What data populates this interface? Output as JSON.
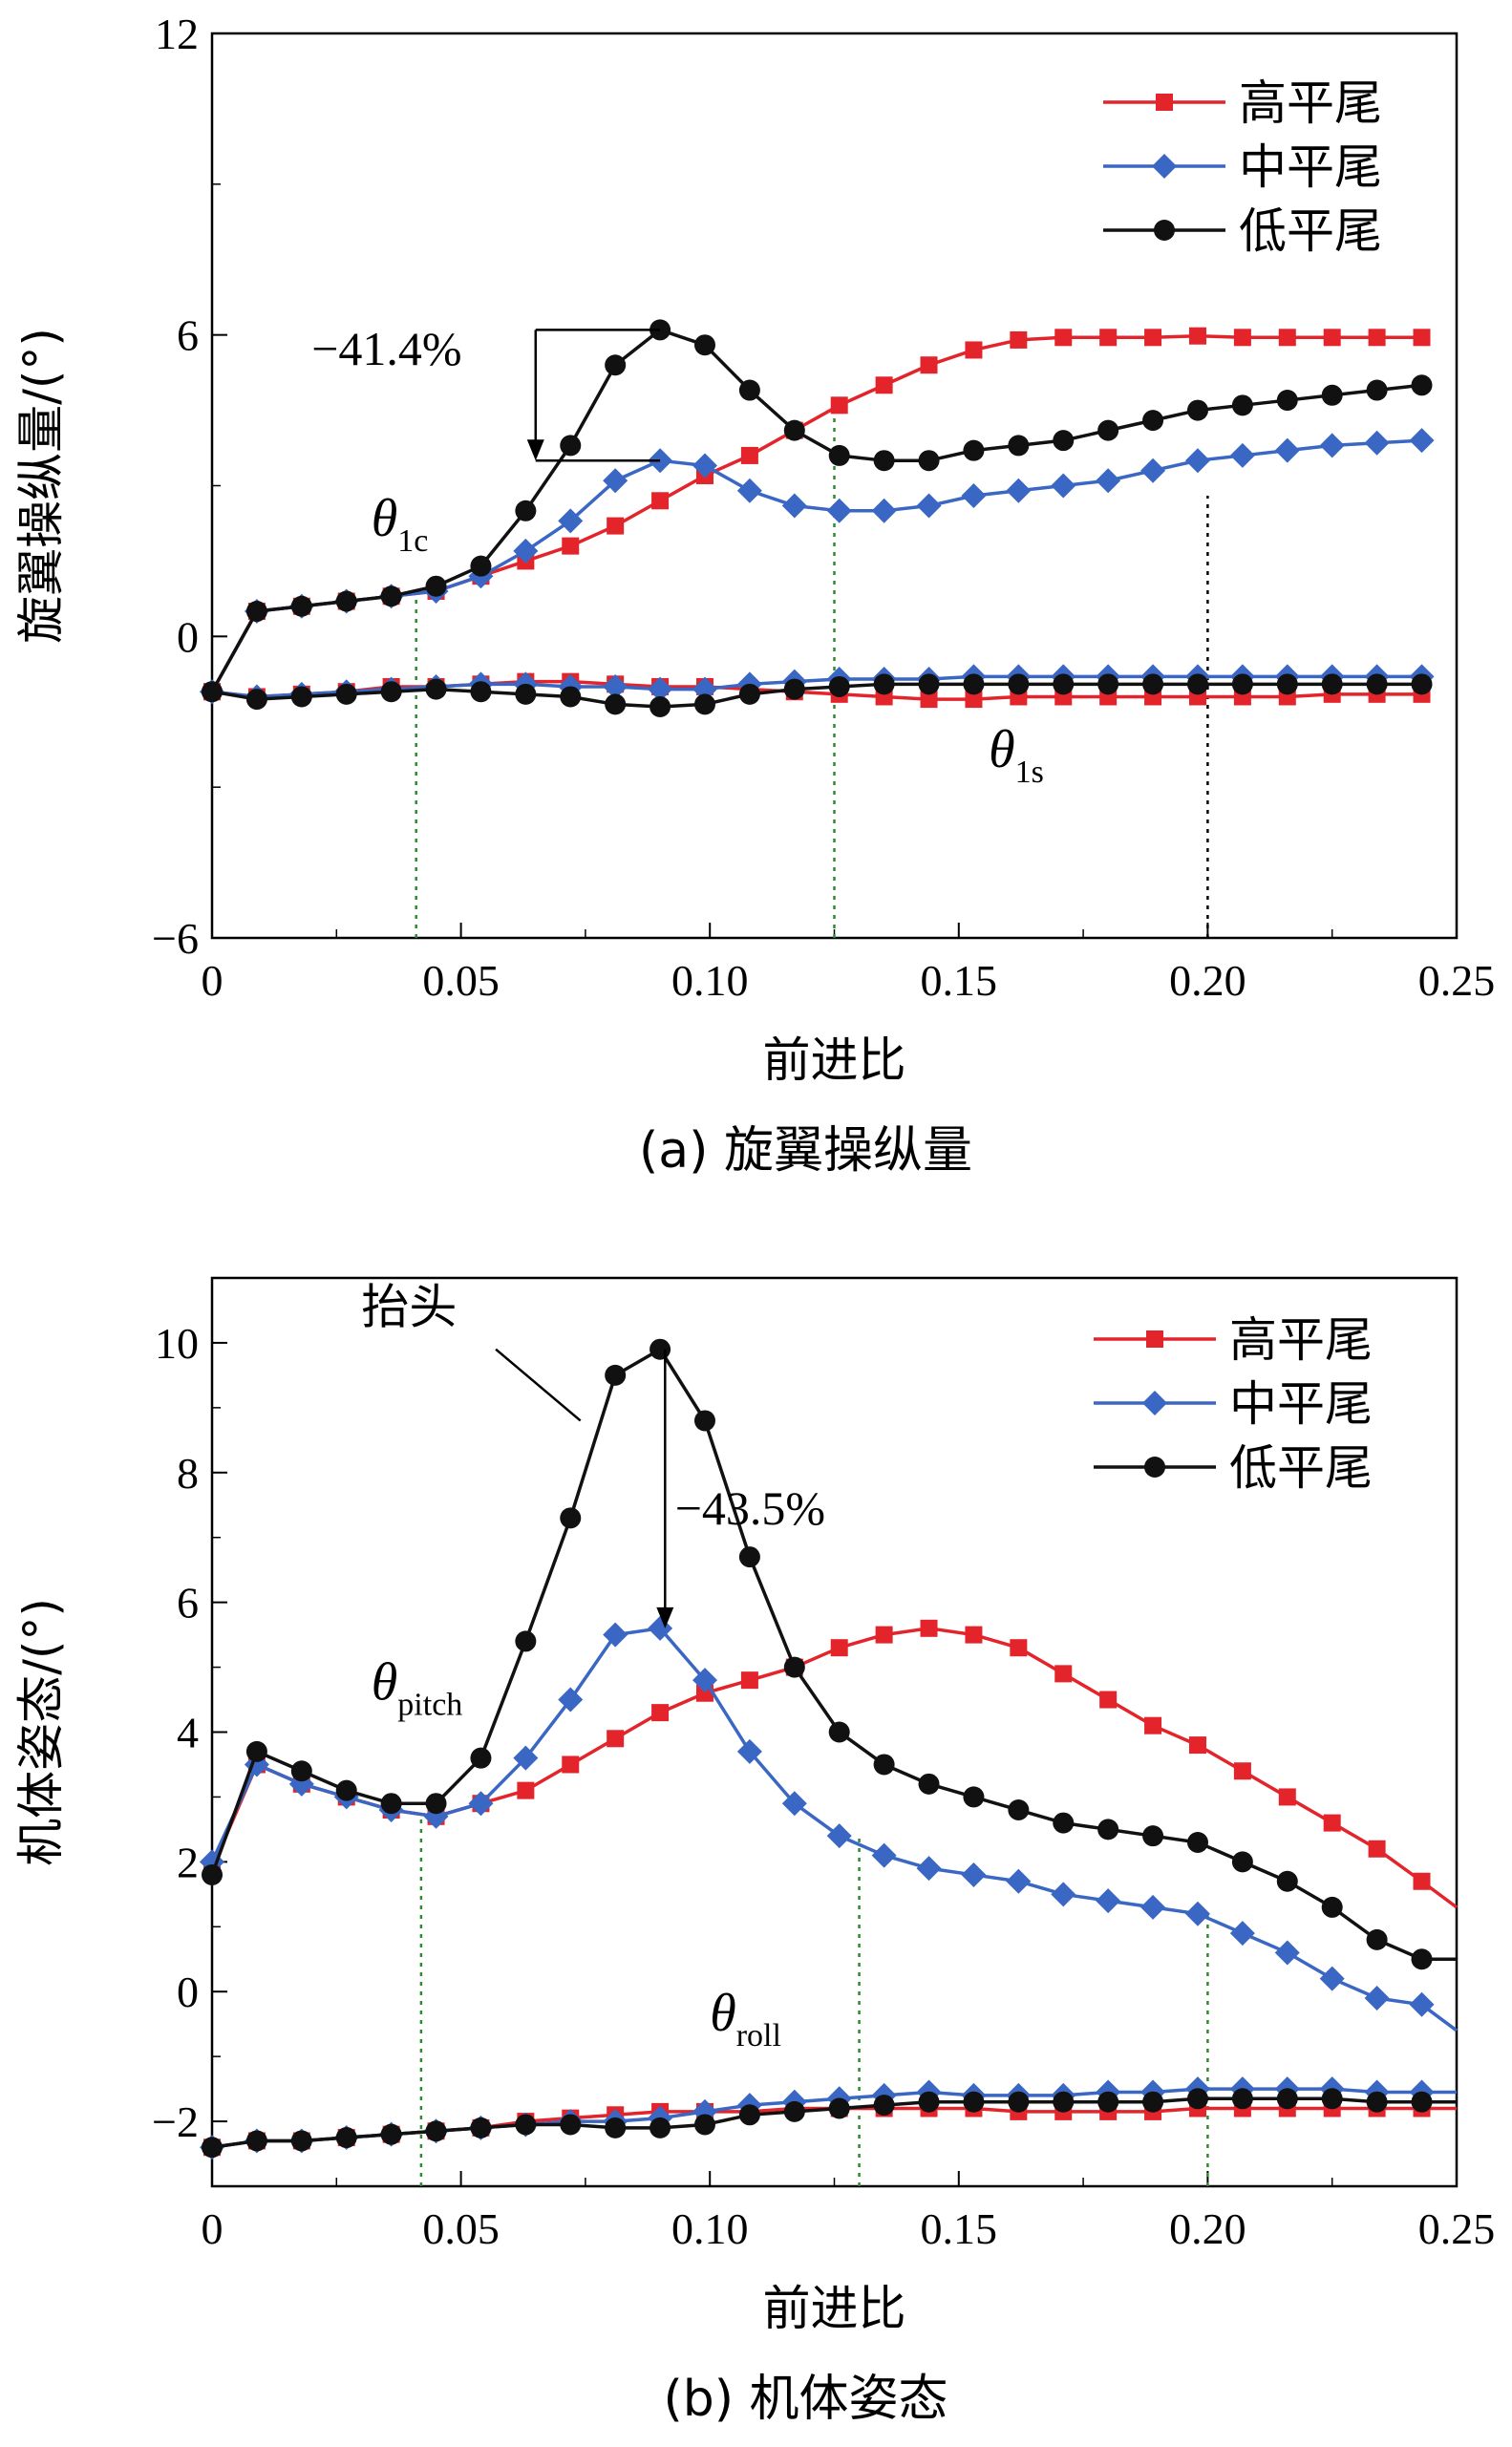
{
  "colors": {
    "high_tail": "#e3242b",
    "mid_tail": "#3a66c4",
    "low_tail": "#111111",
    "guide_green": "#2e8b2e",
    "guide_black": "#000000"
  },
  "chart_data": [
    {
      "type": "line",
      "caption": "(a) 旋翼操纵量",
      "xlabel": "前进比",
      "ylabel": "旋翼操纵量/(°)",
      "xlim": [
        0,
        0.25
      ],
      "ylim": [
        -6,
        12
      ],
      "xticks": [
        0,
        0.05,
        0.1,
        0.15,
        0.2,
        0.25
      ],
      "xtick_labels": [
        "0",
        "0.05",
        "0.10",
        "0.15",
        "0.20",
        "0.25"
      ],
      "yticks": [
        -6,
        0,
        6,
        12
      ],
      "ytick_labels": [
        "−6",
        "0",
        "6",
        "12"
      ],
      "legend_position": "top-right",
      "legend": [
        "高平尾",
        "中平尾",
        "低平尾"
      ],
      "x": [
        0,
        0.009,
        0.018,
        0.027,
        0.036,
        0.045,
        0.054,
        0.063,
        0.072,
        0.081,
        0.09,
        0.099,
        0.108,
        0.117,
        0.126,
        0.135,
        0.144,
        0.153,
        0.162,
        0.171,
        0.18,
        0.189,
        0.198,
        0.207,
        0.216,
        0.225,
        0.234,
        0.243
      ],
      "series": [
        {
          "name": "高平尾",
          "group": "θ1c",
          "marker": "square",
          "color_key": "high_tail",
          "values": [
            -1.1,
            0.5,
            0.6,
            0.7,
            0.8,
            0.9,
            1.2,
            1.5,
            1.8,
            2.2,
            2.7,
            3.2,
            3.6,
            4.1,
            4.6,
            5.0,
            5.4,
            5.7,
            5.9,
            5.95,
            5.95,
            5.95,
            5.98,
            5.95,
            5.95,
            5.95,
            5.95,
            5.95
          ]
        },
        {
          "name": "中平尾",
          "group": "θ1c",
          "marker": "diamond",
          "color_key": "mid_tail",
          "values": [
            -1.1,
            0.5,
            0.6,
            0.7,
            0.8,
            0.9,
            1.2,
            1.7,
            2.3,
            3.1,
            3.5,
            3.4,
            2.9,
            2.6,
            2.5,
            2.5,
            2.6,
            2.8,
            2.9,
            3.0,
            3.1,
            3.3,
            3.5,
            3.6,
            3.7,
            3.8,
            3.85,
            3.9
          ]
        },
        {
          "name": "低平尾",
          "group": "θ1c",
          "marker": "circle",
          "color_key": "low_tail",
          "values": [
            -1.1,
            0.5,
            0.6,
            0.7,
            0.8,
            1.0,
            1.4,
            2.5,
            3.8,
            5.4,
            6.1,
            5.8,
            4.9,
            4.1,
            3.6,
            3.5,
            3.5,
            3.7,
            3.8,
            3.9,
            4.1,
            4.3,
            4.5,
            4.6,
            4.7,
            4.8,
            4.9,
            5.0
          ]
        },
        {
          "name": "高平尾",
          "group": "θ1s",
          "marker": "square",
          "color_key": "high_tail",
          "values": [
            -1.1,
            -1.2,
            -1.15,
            -1.1,
            -1.0,
            -1.0,
            -0.95,
            -0.9,
            -0.9,
            -0.95,
            -1.0,
            -1.0,
            -1.05,
            -1.1,
            -1.15,
            -1.2,
            -1.25,
            -1.25,
            -1.2,
            -1.2,
            -1.2,
            -1.2,
            -1.2,
            -1.2,
            -1.2,
            -1.15,
            -1.15,
            -1.15
          ]
        },
        {
          "name": "中平尾",
          "group": "θ1s",
          "marker": "diamond",
          "color_key": "mid_tail",
          "values": [
            -1.1,
            -1.2,
            -1.15,
            -1.1,
            -1.05,
            -1.0,
            -0.95,
            -0.95,
            -1.0,
            -1.0,
            -1.05,
            -1.05,
            -0.95,
            -0.9,
            -0.85,
            -0.85,
            -0.85,
            -0.8,
            -0.8,
            -0.8,
            -0.8,
            -0.8,
            -0.8,
            -0.8,
            -0.8,
            -0.8,
            -0.8,
            -0.8
          ]
        },
        {
          "name": "低平尾",
          "group": "θ1s",
          "marker": "circle",
          "color_key": "low_tail",
          "values": [
            -1.1,
            -1.25,
            -1.2,
            -1.15,
            -1.1,
            -1.05,
            -1.1,
            -1.15,
            -1.2,
            -1.35,
            -1.4,
            -1.35,
            -1.15,
            -1.05,
            -1.0,
            -0.95,
            -0.95,
            -0.95,
            -0.95,
            -0.95,
            -0.95,
            -0.95,
            -0.95,
            -0.95,
            -0.95,
            -0.95,
            -0.95,
            -0.95
          ]
        }
      ],
      "guide_lines": [
        {
          "x": 0.041,
          "y_top": 0.9,
          "style": "green-dotted"
        },
        {
          "x": 0.125,
          "y_top": 4.6,
          "style": "green-dotted"
        },
        {
          "x": 0.2,
          "y_top": 2.8,
          "style": "black-dotted"
        }
      ],
      "annotations": [
        {
          "text": "−41.4%",
          "x": 0.02,
          "y": 5.4
        },
        {
          "text": "θ",
          "sub": "1c",
          "x": 0.032,
          "y": 2.0
        },
        {
          "text": "θ",
          "sub": "1s",
          "x": 0.156,
          "y": -2.6
        }
      ],
      "reduction_arrow": {
        "x": 0.065,
        "y_from": 6.1,
        "y_to": 3.5,
        "bracket_x_end": 0.09
      }
    },
    {
      "type": "line",
      "caption": "(b) 机体姿态",
      "xlabel": "前进比",
      "ylabel": "机体姿态/(°)",
      "xlim": [
        0,
        0.25
      ],
      "ylim": [
        -3,
        11
      ],
      "xticks": [
        0,
        0.05,
        0.1,
        0.15,
        0.2,
        0.25
      ],
      "xtick_labels": [
        "0",
        "0.05",
        "0.10",
        "0.15",
        "0.20",
        "0.25"
      ],
      "yticks": [
        -2,
        0,
        2,
        4,
        6,
        8,
        10
      ],
      "ytick_labels": [
        "−2",
        "0",
        "2",
        "4",
        "6",
        "8",
        "10"
      ],
      "legend_position": "top-right",
      "legend": [
        "高平尾",
        "中平尾",
        "低平尾"
      ],
      "x": [
        0,
        0.009,
        0.018,
        0.027,
        0.036,
        0.045,
        0.054,
        0.063,
        0.072,
        0.081,
        0.09,
        0.099,
        0.108,
        0.117,
        0.126,
        0.135,
        0.144,
        0.153,
        0.162,
        0.171,
        0.18,
        0.189,
        0.198,
        0.207,
        0.216,
        0.225,
        0.234,
        0.243,
        0.25
      ],
      "series": [
        {
          "name": "高平尾",
          "group": "θpitch",
          "marker": "square",
          "color_key": "high_tail",
          "values": [
            1.9,
            3.5,
            3.2,
            3.0,
            2.8,
            2.7,
            2.9,
            3.1,
            3.5,
            3.9,
            4.3,
            4.6,
            4.8,
            5.0,
            5.3,
            5.5,
            5.6,
            5.5,
            5.3,
            4.9,
            4.5,
            4.1,
            3.8,
            3.4,
            3.0,
            2.6,
            2.2,
            1.7,
            1.3
          ]
        },
        {
          "name": "中平尾",
          "group": "θpitch",
          "marker": "diamond",
          "color_key": "mid_tail",
          "values": [
            2.0,
            3.5,
            3.2,
            3.0,
            2.8,
            2.7,
            2.9,
            3.6,
            4.5,
            5.5,
            5.6,
            4.8,
            3.7,
            2.9,
            2.4,
            2.1,
            1.9,
            1.8,
            1.7,
            1.5,
            1.4,
            1.3,
            1.2,
            0.9,
            0.6,
            0.2,
            -0.1,
            -0.2,
            -0.6
          ]
        },
        {
          "name": "低平尾",
          "group": "θpitch",
          "marker": "circle",
          "color_key": "low_tail",
          "values": [
            1.8,
            3.7,
            3.4,
            3.1,
            2.9,
            2.9,
            3.6,
            5.4,
            7.3,
            9.5,
            9.9,
            8.8,
            6.7,
            5.0,
            4.0,
            3.5,
            3.2,
            3.0,
            2.8,
            2.6,
            2.5,
            2.4,
            2.3,
            2.0,
            1.7,
            1.3,
            0.8,
            0.5,
            0.5
          ]
        },
        {
          "name": "高平尾",
          "group": "θroll",
          "marker": "square",
          "color_key": "high_tail",
          "values": [
            -2.4,
            -2.3,
            -2.3,
            -2.25,
            -2.2,
            -2.15,
            -2.1,
            -2.0,
            -1.95,
            -1.9,
            -1.85,
            -1.85,
            -1.85,
            -1.8,
            -1.8,
            -1.8,
            -1.8,
            -1.8,
            -1.85,
            -1.85,
            -1.85,
            -1.85,
            -1.8,
            -1.8,
            -1.8,
            -1.8,
            -1.8,
            -1.8,
            -1.8
          ]
        },
        {
          "name": "中平尾",
          "group": "θroll",
          "marker": "diamond",
          "color_key": "mid_tail",
          "values": [
            -2.4,
            -2.3,
            -2.3,
            -2.25,
            -2.2,
            -2.15,
            -2.1,
            -2.05,
            -2.0,
            -2.0,
            -1.95,
            -1.85,
            -1.75,
            -1.7,
            -1.65,
            -1.6,
            -1.55,
            -1.6,
            -1.6,
            -1.6,
            -1.55,
            -1.55,
            -1.5,
            -1.5,
            -1.5,
            -1.5,
            -1.55,
            -1.55,
            -1.55
          ]
        },
        {
          "name": "低平尾",
          "group": "θroll",
          "marker": "circle",
          "color_key": "low_tail",
          "values": [
            -2.4,
            -2.3,
            -2.3,
            -2.25,
            -2.2,
            -2.15,
            -2.1,
            -2.05,
            -2.05,
            -2.1,
            -2.1,
            -2.05,
            -1.9,
            -1.85,
            -1.8,
            -1.75,
            -1.7,
            -1.7,
            -1.7,
            -1.7,
            -1.7,
            -1.7,
            -1.65,
            -1.65,
            -1.65,
            -1.65,
            -1.7,
            -1.7,
            -1.7
          ]
        }
      ],
      "guide_lines": [
        {
          "x": 0.042,
          "y_top": 2.7,
          "style": "green-dotted"
        },
        {
          "x": 0.13,
          "y_top": 2.4,
          "style": "green-dotted"
        },
        {
          "x": 0.2,
          "y_top": 1.2,
          "style": "green-dotted"
        }
      ],
      "annotations": [
        {
          "text": "抬头",
          "x": 0.03,
          "y": 10.3
        },
        {
          "text": "−43.5%",
          "x": 0.093,
          "y": 7.2
        },
        {
          "text": "θ",
          "sub": "pitch",
          "x": 0.032,
          "y": 4.5
        },
        {
          "text": "θ",
          "sub": "roll",
          "x": 0.1,
          "y": -0.6
        }
      ],
      "leader_line": {
        "from_x": 0.057,
        "from_y": 9.9,
        "to_x": 0.074,
        "to_y": 8.8
      },
      "reduction_arrow": {
        "x": 0.091,
        "y_from": 9.9,
        "y_to": 5.6
      }
    }
  ]
}
